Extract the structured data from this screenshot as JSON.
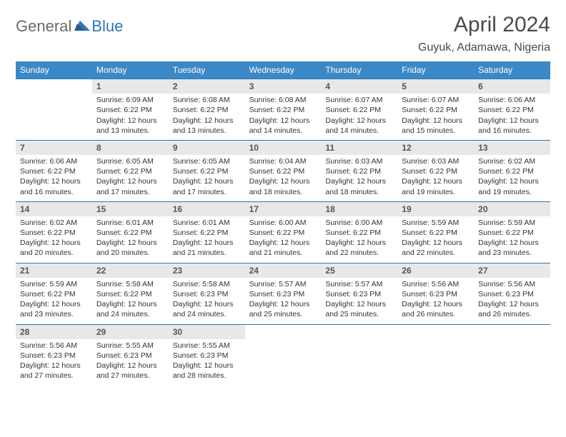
{
  "logo": {
    "general": "General",
    "blue": "Blue"
  },
  "title": "April 2024",
  "location": "Guyuk, Adamawa, Nigeria",
  "colors": {
    "header_bg": "#3b88c7",
    "border": "#2a77b8",
    "daynum_bg": "#e8e8e8",
    "text": "#333333",
    "logo_gray": "#6b6b6b",
    "logo_blue": "#2a77b8"
  },
  "dayNames": [
    "Sunday",
    "Monday",
    "Tuesday",
    "Wednesday",
    "Thursday",
    "Friday",
    "Saturday"
  ],
  "grid": {
    "firstDayOffset": 1,
    "daysInMonth": 30
  },
  "days": {
    "1": {
      "sunrise": "6:09 AM",
      "sunset": "6:22 PM",
      "daylight": "12 hours and 13 minutes."
    },
    "2": {
      "sunrise": "6:08 AM",
      "sunset": "6:22 PM",
      "daylight": "12 hours and 13 minutes."
    },
    "3": {
      "sunrise": "6:08 AM",
      "sunset": "6:22 PM",
      "daylight": "12 hours and 14 minutes."
    },
    "4": {
      "sunrise": "6:07 AM",
      "sunset": "6:22 PM",
      "daylight": "12 hours and 14 minutes."
    },
    "5": {
      "sunrise": "6:07 AM",
      "sunset": "6:22 PM",
      "daylight": "12 hours and 15 minutes."
    },
    "6": {
      "sunrise": "6:06 AM",
      "sunset": "6:22 PM",
      "daylight": "12 hours and 16 minutes."
    },
    "7": {
      "sunrise": "6:06 AM",
      "sunset": "6:22 PM",
      "daylight": "12 hours and 16 minutes."
    },
    "8": {
      "sunrise": "6:05 AM",
      "sunset": "6:22 PM",
      "daylight": "12 hours and 17 minutes."
    },
    "9": {
      "sunrise": "6:05 AM",
      "sunset": "6:22 PM",
      "daylight": "12 hours and 17 minutes."
    },
    "10": {
      "sunrise": "6:04 AM",
      "sunset": "6:22 PM",
      "daylight": "12 hours and 18 minutes."
    },
    "11": {
      "sunrise": "6:03 AM",
      "sunset": "6:22 PM",
      "daylight": "12 hours and 18 minutes."
    },
    "12": {
      "sunrise": "6:03 AM",
      "sunset": "6:22 PM",
      "daylight": "12 hours and 19 minutes."
    },
    "13": {
      "sunrise": "6:02 AM",
      "sunset": "6:22 PM",
      "daylight": "12 hours and 19 minutes."
    },
    "14": {
      "sunrise": "6:02 AM",
      "sunset": "6:22 PM",
      "daylight": "12 hours and 20 minutes."
    },
    "15": {
      "sunrise": "6:01 AM",
      "sunset": "6:22 PM",
      "daylight": "12 hours and 20 minutes."
    },
    "16": {
      "sunrise": "6:01 AM",
      "sunset": "6:22 PM",
      "daylight": "12 hours and 21 minutes."
    },
    "17": {
      "sunrise": "6:00 AM",
      "sunset": "6:22 PM",
      "daylight": "12 hours and 21 minutes."
    },
    "18": {
      "sunrise": "6:00 AM",
      "sunset": "6:22 PM",
      "daylight": "12 hours and 22 minutes."
    },
    "19": {
      "sunrise": "5:59 AM",
      "sunset": "6:22 PM",
      "daylight": "12 hours and 22 minutes."
    },
    "20": {
      "sunrise": "5:59 AM",
      "sunset": "6:22 PM",
      "daylight": "12 hours and 23 minutes."
    },
    "21": {
      "sunrise": "5:59 AM",
      "sunset": "6:22 PM",
      "daylight": "12 hours and 23 minutes."
    },
    "22": {
      "sunrise": "5:58 AM",
      "sunset": "6:22 PM",
      "daylight": "12 hours and 24 minutes."
    },
    "23": {
      "sunrise": "5:58 AM",
      "sunset": "6:23 PM",
      "daylight": "12 hours and 24 minutes."
    },
    "24": {
      "sunrise": "5:57 AM",
      "sunset": "6:23 PM",
      "daylight": "12 hours and 25 minutes."
    },
    "25": {
      "sunrise": "5:57 AM",
      "sunset": "6:23 PM",
      "daylight": "12 hours and 25 minutes."
    },
    "26": {
      "sunrise": "5:56 AM",
      "sunset": "6:23 PM",
      "daylight": "12 hours and 26 minutes."
    },
    "27": {
      "sunrise": "5:56 AM",
      "sunset": "6:23 PM",
      "daylight": "12 hours and 26 minutes."
    },
    "28": {
      "sunrise": "5:56 AM",
      "sunset": "6:23 PM",
      "daylight": "12 hours and 27 minutes."
    },
    "29": {
      "sunrise": "5:55 AM",
      "sunset": "6:23 PM",
      "daylight": "12 hours and 27 minutes."
    },
    "30": {
      "sunrise": "5:55 AM",
      "sunset": "6:23 PM",
      "daylight": "12 hours and 28 minutes."
    }
  },
  "labels": {
    "sunrise": "Sunrise:",
    "sunset": "Sunset:",
    "daylight": "Daylight:"
  }
}
